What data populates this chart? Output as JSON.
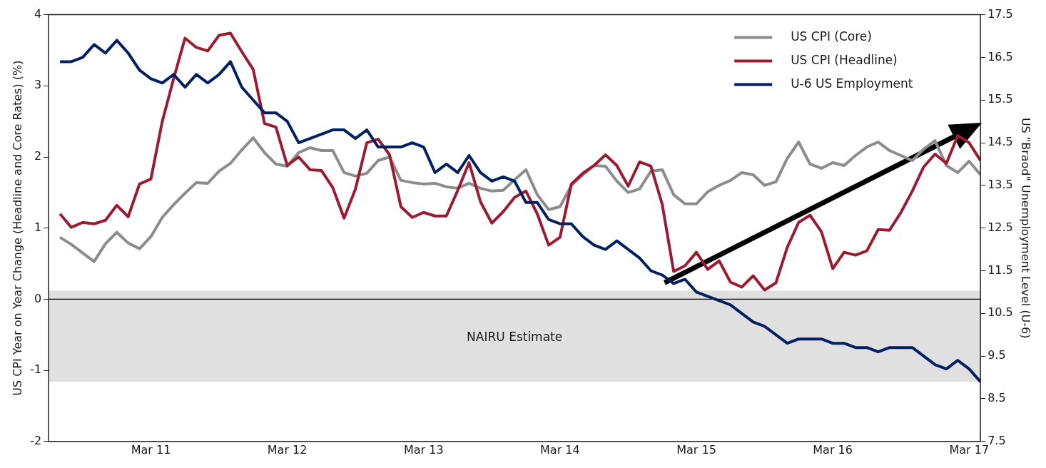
{
  "chart_data": {
    "type": "line",
    "ylabel": "US CPI Year on Year Change (Headline and Core Rates) (%)",
    "y2label": "US \"Braod\" Unemployment Level (U-6)",
    "x": [
      "2010-07",
      "2010-08",
      "2010-09",
      "2010-10",
      "2010-11",
      "2010-12",
      "2011-01",
      "2011-02",
      "2011-03",
      "2011-04",
      "2011-05",
      "2011-06",
      "2011-07",
      "2011-08",
      "2011-09",
      "2011-10",
      "2011-11",
      "2011-12",
      "2012-01",
      "2012-02",
      "2012-03",
      "2012-04",
      "2012-05",
      "2012-06",
      "2012-07",
      "2012-08",
      "2012-09",
      "2012-10",
      "2012-11",
      "2012-12",
      "2013-01",
      "2013-02",
      "2013-03",
      "2013-04",
      "2013-05",
      "2013-06",
      "2013-07",
      "2013-08",
      "2013-09",
      "2013-10",
      "2013-11",
      "2013-12",
      "2014-01",
      "2014-02",
      "2014-03",
      "2014-04",
      "2014-05",
      "2014-06",
      "2014-07",
      "2014-08",
      "2014-09",
      "2014-10",
      "2014-11",
      "2014-12",
      "2015-01",
      "2015-02",
      "2015-03",
      "2015-04",
      "2015-05",
      "2015-06",
      "2015-07",
      "2015-08",
      "2015-09",
      "2015-10",
      "2015-11",
      "2015-12",
      "2016-01",
      "2016-02",
      "2016-03",
      "2016-04",
      "2016-05",
      "2016-06",
      "2016-07",
      "2016-08",
      "2016-09",
      "2016-10",
      "2016-11",
      "2016-12",
      "2017-01",
      "2017-02",
      "2017-03",
      "2017-04"
    ],
    "series": [
      {
        "name": "US CPI (Core)",
        "color": "#8c8c8c",
        "values": [
          0.87,
          0.77,
          0.65,
          0.53,
          0.78,
          0.94,
          0.79,
          0.71,
          0.88,
          1.15,
          1.33,
          1.49,
          1.64,
          1.63,
          1.8,
          1.91,
          2.1,
          2.27,
          2.06,
          1.9,
          1.87,
          2.06,
          2.13,
          2.09,
          2.09,
          1.78,
          1.73,
          1.77,
          1.95,
          2.0,
          1.67,
          1.64,
          1.62,
          1.63,
          1.58,
          1.56,
          1.63,
          1.56,
          1.52,
          1.53,
          1.68,
          1.82,
          1.47,
          1.26,
          1.3,
          1.6,
          1.75,
          1.88,
          1.87,
          1.66,
          1.5,
          1.55,
          1.8,
          1.82,
          1.47,
          1.34,
          1.34,
          1.51,
          1.6,
          1.67,
          1.78,
          1.75,
          1.6,
          1.65,
          1.98,
          2.21,
          1.9,
          1.84,
          1.92,
          1.88,
          2.02,
          2.14,
          2.21,
          2.09,
          2.02,
          1.95,
          2.11,
          2.23,
          1.88,
          1.78,
          1.94,
          1.75
        ]
      },
      {
        "name": "US CPI (Headline)",
        "color": "#9b1b30",
        "values": [
          1.2,
          1.01,
          1.08,
          1.06,
          1.11,
          1.32,
          1.16,
          1.62,
          1.69,
          2.5,
          3.1,
          3.67,
          3.54,
          3.49,
          3.71,
          3.74,
          3.48,
          3.23,
          2.47,
          2.42,
          1.88,
          2.0,
          1.82,
          1.81,
          1.57,
          1.14,
          1.55,
          2.2,
          2.25,
          2.03,
          1.3,
          1.15,
          1.22,
          1.17,
          1.17,
          1.53,
          1.92,
          1.37,
          1.07,
          1.23,
          1.43,
          1.52,
          1.2,
          0.76,
          0.87,
          1.62,
          1.77,
          1.88,
          2.03,
          1.88,
          1.59,
          1.93,
          1.87,
          1.33,
          0.39,
          0.47,
          0.66,
          0.42,
          0.54,
          0.24,
          0.17,
          0.33,
          0.13,
          0.23,
          0.73,
          1.08,
          1.18,
          0.95,
          0.43,
          0.66,
          0.62,
          0.68,
          0.98,
          0.97,
          1.22,
          1.52,
          1.86,
          2.04,
          1.91,
          2.3,
          2.2,
          1.95
        ]
      },
      {
        "name": "U-6 US Employment",
        "color": "#002060",
        "axis": "y2",
        "values": [
          16.4,
          16.4,
          16.5,
          16.8,
          16.6,
          16.9,
          16.6,
          16.2,
          16.0,
          15.9,
          16.1,
          15.8,
          16.1,
          15.9,
          16.1,
          16.4,
          15.8,
          15.5,
          15.2,
          15.2,
          15.0,
          14.5,
          14.6,
          14.7,
          14.8,
          14.8,
          14.6,
          14.8,
          14.4,
          14.4,
          14.4,
          14.5,
          14.4,
          13.8,
          14.0,
          13.8,
          14.2,
          13.8,
          13.6,
          13.7,
          13.6,
          13.1,
          13.1,
          12.7,
          12.6,
          12.6,
          12.3,
          12.1,
          12.0,
          12.2,
          12.0,
          11.8,
          11.5,
          11.4,
          11.2,
          11.3,
          11.0,
          10.9,
          10.8,
          10.7,
          10.5,
          10.3,
          10.2,
          10.0,
          9.8,
          9.9,
          9.9,
          9.9,
          9.8,
          9.8,
          9.7,
          9.7,
          9.6,
          9.7,
          9.7,
          9.7,
          9.5,
          9.3,
          9.2,
          9.4,
          9.2,
          8.9
        ]
      }
    ],
    "xlim": [
      "2010-06",
      "2017-04"
    ],
    "xticks": [
      {
        "value": "2011-03",
        "label": "Mar 11"
      },
      {
        "value": "2012-03",
        "label": "Mar 12"
      },
      {
        "value": "2013-03",
        "label": "Mar 13"
      },
      {
        "value": "2014-03",
        "label": "Mar 14"
      },
      {
        "value": "2015-03",
        "label": "Mar 15"
      },
      {
        "value": "2016-03",
        "label": "Mar 16"
      },
      {
        "value": "2017-03",
        "label": "Mar 17"
      }
    ],
    "ylim": [
      -2,
      4
    ],
    "yticks": [
      -2,
      -1,
      0,
      1,
      2,
      3,
      4
    ],
    "y2lim": [
      7.5,
      17.5
    ],
    "y2ticks": [
      7.5,
      8.5,
      9.5,
      10.5,
      11.5,
      12.5,
      13.5,
      14.5,
      15.5,
      16.5,
      17.5
    ],
    "ref_lines": [
      {
        "axis": "y",
        "value": 0,
        "color": "#000000"
      }
    ],
    "bands": [
      {
        "axis": "y",
        "from": -1.16,
        "to": 0.12,
        "label": "NAIRU Estimate",
        "color": "#e0e0e0"
      }
    ],
    "legend": "top right",
    "grid": false,
    "marker": "none",
    "line_style": "solid"
  }
}
